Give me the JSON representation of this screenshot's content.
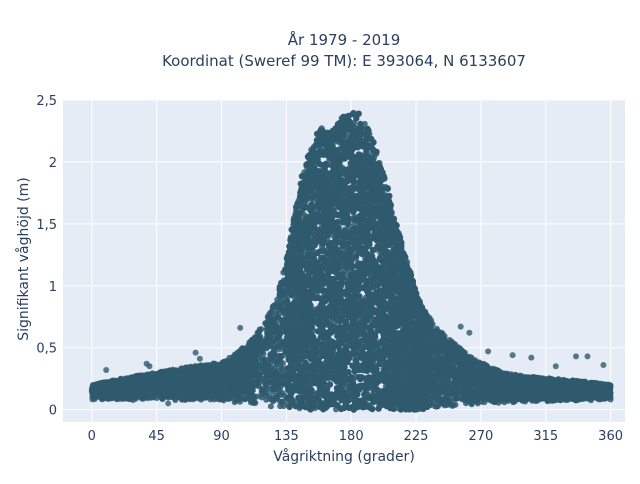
{
  "chart_data": {
    "type": "scatter",
    "title_lines": [
      "År 1979 - 2019",
      "Koordinat (Sweref 99 TM): E 393064, N 6133607"
    ],
    "xlabel": "Vågriktning (grader)",
    "ylabel": "Signifikant våghöjd (m)",
    "xlim": [
      -20,
      370
    ],
    "ylim": [
      -0.1,
      2.5
    ],
    "xticks": [
      0,
      45,
      90,
      135,
      180,
      225,
      270,
      315,
      360
    ],
    "xtick_labels": [
      "0",
      "45",
      "90",
      "135",
      "180",
      "225",
      "270",
      "315",
      "360"
    ],
    "yticks": [
      0,
      0.5,
      1,
      1.5,
      2,
      2.5
    ],
    "ytick_labels": [
      "0",
      "0,5",
      "1",
      "1,5",
      "2",
      "2,5"
    ],
    "grid": true,
    "marker_color": "#2f5a6e",
    "plot_background": "#e5ecf6",
    "envelope_upper": {
      "x": [
        0,
        20,
        45,
        70,
        90,
        100,
        110,
        120,
        128,
        135,
        140,
        145,
        150,
        155,
        160,
        165,
        170,
        175,
        180,
        185,
        190,
        195,
        200,
        205,
        210,
        215,
        220,
        225,
        230,
        240,
        250,
        260,
        270,
        285,
        300,
        320,
        340,
        360
      ],
      "y": [
        0.2,
        0.25,
        0.3,
        0.35,
        0.38,
        0.45,
        0.55,
        0.7,
        0.9,
        1.2,
        1.55,
        1.85,
        2.05,
        2.2,
        2.3,
        2.22,
        2.3,
        2.38,
        2.4,
        2.4,
        2.32,
        2.18,
        2.0,
        1.8,
        1.55,
        1.35,
        1.15,
        0.95,
        0.82,
        0.65,
        0.55,
        0.45,
        0.38,
        0.3,
        0.27,
        0.25,
        0.23,
        0.2
      ]
    },
    "envelope_lower": {
      "x": [
        0,
        90,
        120,
        140,
        180,
        230,
        270,
        360
      ],
      "y": [
        0.08,
        0.07,
        0.03,
        0.0,
        0.0,
        0.0,
        0.05,
        0.08
      ]
    },
    "outliers": [
      {
        "x": 10,
        "y": 0.32
      },
      {
        "x": 28,
        "y": 0.26
      },
      {
        "x": 38,
        "y": 0.37
      },
      {
        "x": 40,
        "y": 0.35
      },
      {
        "x": 53,
        "y": 0.05
      },
      {
        "x": 64,
        "y": 0.25
      },
      {
        "x": 72,
        "y": 0.46
      },
      {
        "x": 75,
        "y": 0.41
      },
      {
        "x": 95,
        "y": 0.34
      },
      {
        "x": 100,
        "y": 0.38
      },
      {
        "x": 103,
        "y": 0.66
      },
      {
        "x": 113,
        "y": 0.57
      },
      {
        "x": 256,
        "y": 0.67
      },
      {
        "x": 262,
        "y": 0.62
      },
      {
        "x": 275,
        "y": 0.47
      },
      {
        "x": 292,
        "y": 0.44
      },
      {
        "x": 305,
        "y": 0.42
      },
      {
        "x": 322,
        "y": 0.35
      },
      {
        "x": 336,
        "y": 0.43
      },
      {
        "x": 344,
        "y": 0.43
      },
      {
        "x": 355,
        "y": 0.36
      }
    ]
  }
}
